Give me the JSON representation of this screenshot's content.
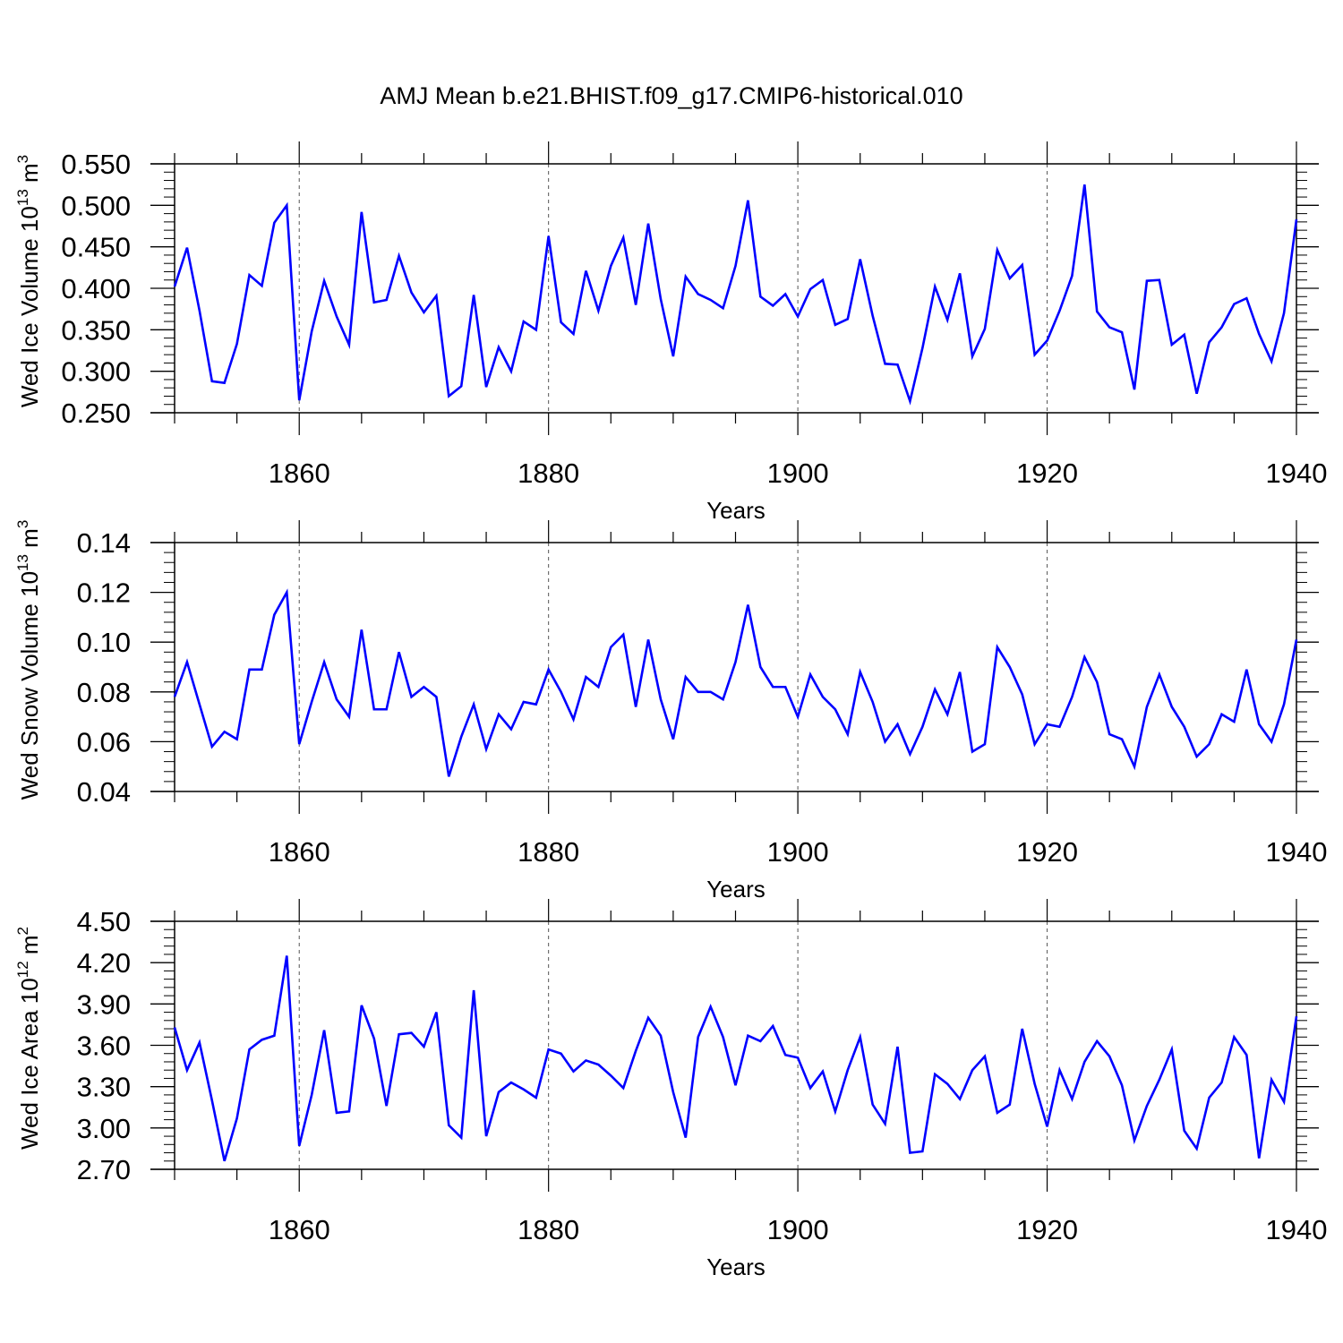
{
  "title": "AMJ Mean b.e21.BHIST.f09_g17.CMIP6-historical.010",
  "colors": {
    "line": "#0000ff",
    "axis": "#000000",
    "grid": "#555555"
  },
  "chart_data": [
    {
      "type": "line",
      "ylabel": "Wed Ice Volume",
      "yunit_base": "10",
      "yunit_exp": "13",
      "yunit_unit": "m",
      "yunit_unit_exp": "3",
      "xlabel": "Years",
      "xlim": [
        1850,
        1940
      ],
      "ylim": [
        0.25,
        0.55
      ],
      "yticks": [
        "0.550",
        "0.500",
        "0.450",
        "0.400",
        "0.350",
        "0.300",
        "0.250"
      ],
      "xticks": [
        "1860",
        "1880",
        "1900",
        "1920",
        "1940"
      ],
      "x_start": 1850,
      "values": [
        0.402,
        0.449,
        0.373,
        0.288,
        0.286,
        0.333,
        0.416,
        0.403,
        0.479,
        0.5,
        0.265,
        0.348,
        0.409,
        0.366,
        0.332,
        0.492,
        0.383,
        0.386,
        0.439,
        0.395,
        0.371,
        0.391,
        0.27,
        0.282,
        0.392,
        0.281,
        0.329,
        0.3,
        0.36,
        0.35,
        0.463,
        0.359,
        0.345,
        0.421,
        0.373,
        0.427,
        0.461,
        0.38,
        0.478,
        0.387,
        0.318,
        0.414,
        0.393,
        0.386,
        0.376,
        0.427,
        0.506,
        0.39,
        0.379,
        0.393,
        0.366,
        0.399,
        0.41,
        0.356,
        0.363,
        0.435,
        0.367,
        0.309,
        0.308,
        0.264,
        0.328,
        0.402,
        0.362,
        0.418,
        0.318,
        0.351,
        0.446,
        0.412,
        0.428,
        0.32,
        0.337,
        0.373,
        0.415,
        0.525,
        0.372,
        0.353,
        0.347,
        0.278,
        0.409,
        0.41,
        0.332,
        0.344,
        0.273,
        0.335,
        0.353,
        0.381,
        0.388,
        0.345,
        0.312,
        0.37,
        0.483
      ]
    },
    {
      "type": "line",
      "ylabel": "Wed Snow Volume",
      "yunit_base": "10",
      "yunit_exp": "13",
      "yunit_unit": "m",
      "yunit_unit_exp": "3",
      "xlabel": "Years",
      "xlim": [
        1850,
        1940
      ],
      "ylim": [
        0.04,
        0.14
      ],
      "yticks": [
        "0.14",
        "0.12",
        "0.10",
        "0.08",
        "0.06",
        "0.04"
      ],
      "xticks": [
        "1860",
        "1880",
        "1900",
        "1920",
        "1940"
      ],
      "x_start": 1850,
      "values": [
        0.078,
        0.092,
        0.075,
        0.058,
        0.064,
        0.061,
        0.089,
        0.089,
        0.111,
        0.12,
        0.059,
        0.076,
        0.092,
        0.077,
        0.07,
        0.105,
        0.073,
        0.073,
        0.096,
        0.078,
        0.082,
        0.078,
        0.046,
        0.062,
        0.075,
        0.057,
        0.071,
        0.065,
        0.076,
        0.075,
        0.089,
        0.08,
        0.069,
        0.086,
        0.082,
        0.098,
        0.103,
        0.074,
        0.101,
        0.077,
        0.061,
        0.086,
        0.08,
        0.08,
        0.077,
        0.092,
        0.115,
        0.09,
        0.082,
        0.082,
        0.07,
        0.087,
        0.078,
        0.073,
        0.063,
        0.088,
        0.076,
        0.06,
        0.067,
        0.055,
        0.066,
        0.081,
        0.071,
        0.088,
        0.056,
        0.059,
        0.098,
        0.09,
        0.079,
        0.059,
        0.067,
        0.066,
        0.078,
        0.094,
        0.084,
        0.063,
        0.061,
        0.05,
        0.074,
        0.087,
        0.074,
        0.066,
        0.054,
        0.059,
        0.071,
        0.068,
        0.089,
        0.067,
        0.06,
        0.075,
        0.101
      ]
    },
    {
      "type": "line",
      "ylabel": "Wed Ice Area",
      "yunit_base": "10",
      "yunit_exp": "12",
      "yunit_unit": "m",
      "yunit_unit_exp": "2",
      "xlabel": "Years",
      "xlim": [
        1850,
        1940
      ],
      "ylim": [
        2.7,
        4.5
      ],
      "yticks": [
        "4.50",
        "4.20",
        "3.90",
        "3.60",
        "3.30",
        "3.00",
        "2.70"
      ],
      "xticks": [
        "1860",
        "1880",
        "1900",
        "1920",
        "1940"
      ],
      "x_start": 1850,
      "values": [
        3.73,
        3.42,
        3.62,
        3.2,
        2.76,
        3.07,
        3.57,
        3.64,
        3.67,
        4.25,
        2.87,
        3.24,
        3.71,
        3.11,
        3.12,
        3.89,
        3.65,
        3.16,
        3.68,
        3.69,
        3.59,
        3.84,
        3.02,
        2.93,
        4.0,
        2.94,
        3.26,
        3.33,
        3.28,
        3.22,
        3.57,
        3.54,
        3.41,
        3.49,
        3.46,
        3.38,
        3.29,
        3.56,
        3.8,
        3.67,
        3.26,
        2.93,
        3.66,
        3.88,
        3.66,
        3.31,
        3.67,
        3.63,
        3.74,
        3.53,
        3.51,
        3.29,
        3.41,
        3.12,
        3.42,
        3.66,
        3.17,
        3.03,
        3.59,
        2.82,
        2.83,
        3.39,
        3.32,
        3.21,
        3.42,
        3.52,
        3.11,
        3.17,
        3.72,
        3.32,
        3.01,
        3.42,
        3.21,
        3.48,
        3.63,
        3.52,
        3.31,
        2.91,
        3.16,
        3.35,
        3.57,
        2.98,
        2.85,
        3.22,
        3.33,
        3.66,
        3.53,
        2.78,
        3.35,
        3.19,
        3.81
      ]
    }
  ]
}
